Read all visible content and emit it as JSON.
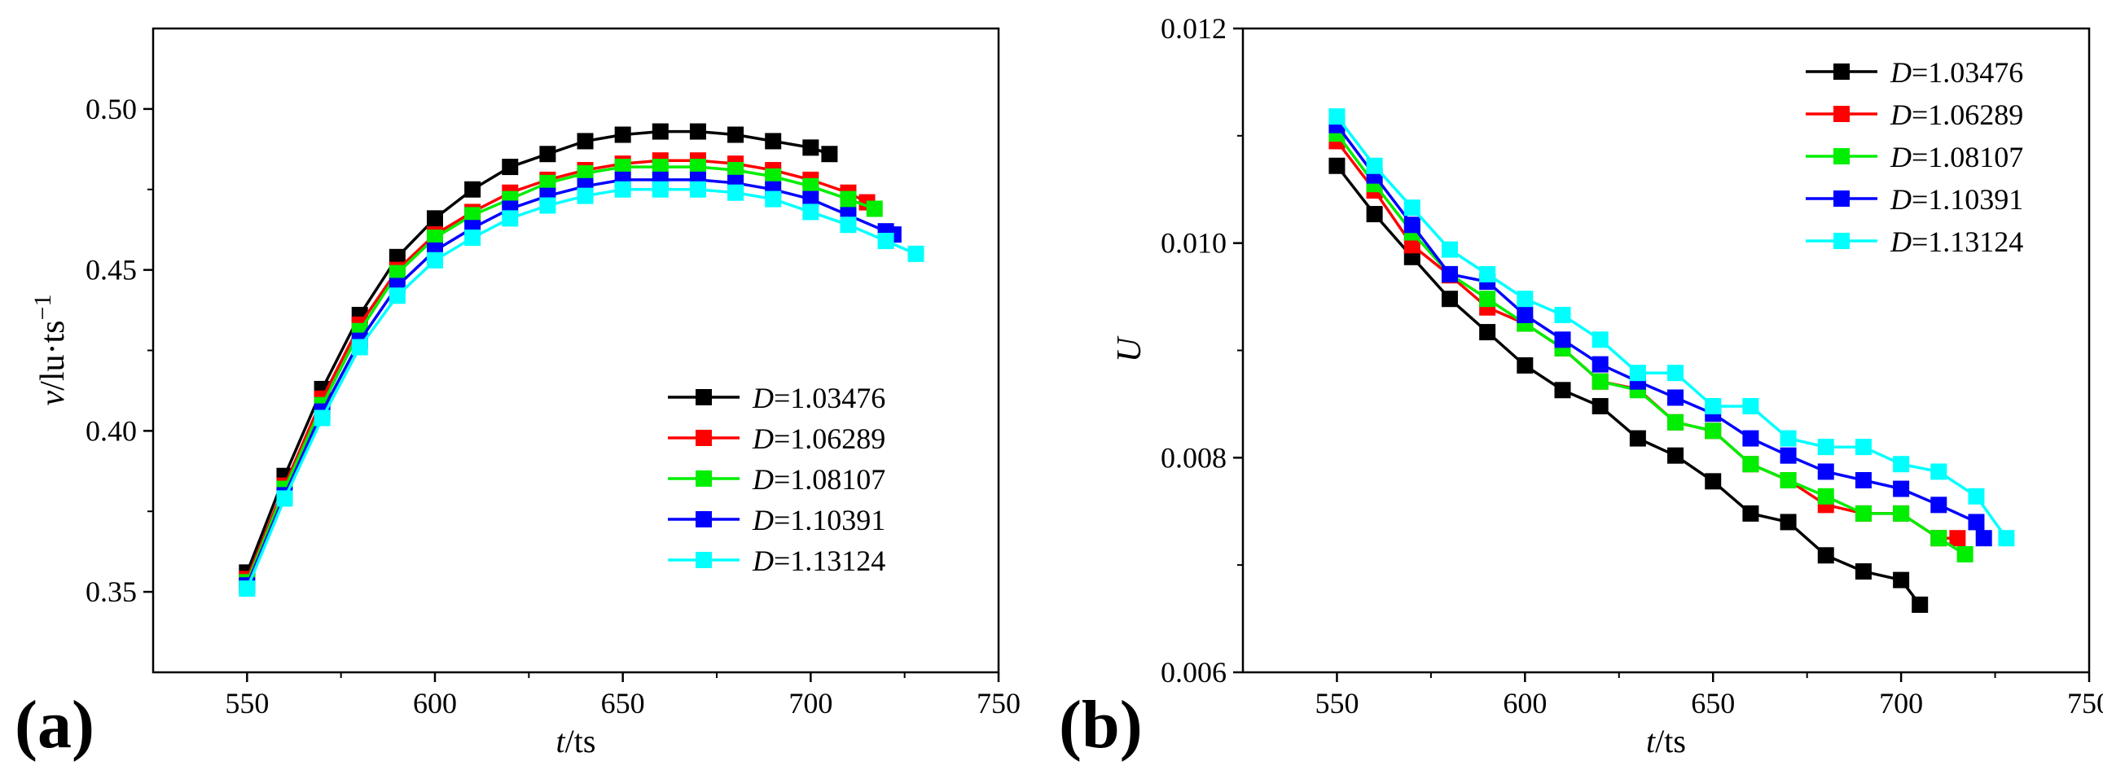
{
  "panel_labels": [
    "(a)",
    "(b)"
  ],
  "chart_data": [
    {
      "type": "line",
      "panel": "(a)",
      "xlabel_italic": "t",
      "xlabel_rest": "/ts",
      "ylabel_italic": "v",
      "ylabel_rest": "/lu·ts",
      "ylabel_sup": "−1",
      "xlim": [
        525,
        750
      ],
      "ylim": [
        0.325,
        0.525
      ],
      "xticks": [
        550,
        600,
        650,
        700,
        750
      ],
      "yticks": [
        0.35,
        0.4,
        0.45,
        0.5
      ],
      "xtick_labels": [
        "550",
        "600",
        "650",
        "700",
        "750"
      ],
      "ytick_labels": [
        "0.35",
        "0.40",
        "0.45",
        "0.50"
      ],
      "legend_position": "lower-right",
      "series": [
        {
          "name": "=1.03476",
          "symbol": "D",
          "color": "#000000",
          "x": [
            550,
            560,
            570,
            580,
            590,
            600,
            610,
            620,
            630,
            640,
            650,
            660,
            670,
            680,
            690,
            700,
            705
          ],
          "y": [
            0.356,
            0.386,
            0.413,
            0.436,
            0.454,
            0.466,
            0.475,
            0.482,
            0.486,
            0.49,
            0.492,
            0.493,
            0.493,
            0.492,
            0.49,
            0.488,
            0.486
          ]
        },
        {
          "name": "=1.06289",
          "symbol": "D",
          "color": "#ff0000",
          "x": [
            550,
            560,
            570,
            580,
            590,
            600,
            610,
            620,
            630,
            640,
            650,
            660,
            670,
            680,
            690,
            700,
            710,
            715
          ],
          "y": [
            0.354,
            0.383,
            0.41,
            0.433,
            0.45,
            0.461,
            0.468,
            0.474,
            0.478,
            0.481,
            0.483,
            0.484,
            0.484,
            0.483,
            0.481,
            0.478,
            0.474,
            0.471
          ]
        },
        {
          "name": "=1.08107",
          "symbol": "D",
          "color": "#00ee00",
          "x": [
            550,
            560,
            570,
            580,
            590,
            600,
            610,
            620,
            630,
            640,
            650,
            660,
            670,
            680,
            690,
            700,
            710,
            717
          ],
          "y": [
            0.353,
            0.382,
            0.408,
            0.431,
            0.449,
            0.46,
            0.467,
            0.472,
            0.477,
            0.48,
            0.482,
            0.482,
            0.482,
            0.481,
            0.479,
            0.476,
            0.472,
            0.469
          ]
        },
        {
          "name": "=1.10391",
          "symbol": "D",
          "color": "#0000ff",
          "x": [
            550,
            560,
            570,
            580,
            590,
            600,
            610,
            620,
            630,
            640,
            650,
            660,
            670,
            680,
            690,
            700,
            710,
            720,
            722
          ],
          "y": [
            0.352,
            0.38,
            0.406,
            0.428,
            0.445,
            0.456,
            0.463,
            0.469,
            0.473,
            0.476,
            0.478,
            0.478,
            0.478,
            0.477,
            0.475,
            0.472,
            0.467,
            0.462,
            0.461
          ]
        },
        {
          "name": "=1.13124",
          "symbol": "D",
          "color": "#00ffff",
          "x": [
            550,
            560,
            570,
            580,
            590,
            600,
            610,
            620,
            630,
            640,
            650,
            660,
            670,
            680,
            690,
            700,
            710,
            720,
            728
          ],
          "y": [
            0.351,
            0.379,
            0.404,
            0.426,
            0.442,
            0.453,
            0.46,
            0.466,
            0.47,
            0.473,
            0.475,
            0.475,
            0.475,
            0.474,
            0.472,
            0.468,
            0.464,
            0.459,
            0.455
          ]
        }
      ]
    },
    {
      "type": "line",
      "panel": "(b)",
      "xlabel_italic": "t",
      "xlabel_rest": "/ts",
      "ylabel_italic": "U",
      "ylabel_rest": "",
      "ylabel_sup": "",
      "xlim": [
        525,
        750
      ],
      "ylim": [
        0.006,
        0.012
      ],
      "xticks": [
        550,
        600,
        650,
        700,
        750
      ],
      "yticks": [
        0.006,
        0.008,
        0.01,
        0.012
      ],
      "xtick_labels": [
        "550",
        "600",
        "650",
        "700",
        "750"
      ],
      "ytick_labels": [
        "0.006",
        "0.008",
        "0.010",
        "0.012"
      ],
      "legend_position": "top-right",
      "series": [
        {
          "name": "=1.03476",
          "symbol": "D",
          "color": "#000000",
          "x": [
            550,
            560,
            570,
            580,
            590,
            600,
            610,
            620,
            630,
            640,
            650,
            660,
            670,
            680,
            690,
            700,
            705
          ],
          "y": [
            0.01072,
            0.01027,
            0.00987,
            0.00948,
            0.00917,
            0.00886,
            0.00863,
            0.00848,
            0.00818,
            0.00802,
            0.00778,
            0.00748,
            0.0074,
            0.00709,
            0.00694,
            0.00686,
            0.00663
          ]
        },
        {
          "name": "=1.06289",
          "symbol": "D",
          "color": "#ff0000",
          "x": [
            550,
            560,
            570,
            580,
            590,
            600,
            610,
            620,
            630,
            640,
            650,
            660,
            670,
            680,
            690,
            700,
            710,
            715
          ],
          "y": [
            0.01095,
            0.01049,
            0.00998,
            0.0097,
            0.0094,
            0.00925,
            0.00902,
            0.00871,
            0.00864,
            0.00833,
            0.00825,
            0.00794,
            0.00779,
            0.00756,
            0.00748,
            0.00748,
            0.00725,
            0.00725
          ]
        },
        {
          "name": "=1.08107",
          "symbol": "D",
          "color": "#00ee00",
          "x": [
            550,
            560,
            570,
            580,
            590,
            600,
            610,
            620,
            630,
            640,
            650,
            660,
            670,
            680,
            690,
            700,
            710,
            717
          ],
          "y": [
            0.01102,
            0.01055,
            0.0101,
            0.00971,
            0.00948,
            0.00925,
            0.00902,
            0.00871,
            0.00863,
            0.00833,
            0.00825,
            0.00794,
            0.00779,
            0.00764,
            0.00748,
            0.00748,
            0.00725,
            0.0071
          ]
        },
        {
          "name": "=1.10391",
          "symbol": "D",
          "color": "#0000ff",
          "x": [
            550,
            560,
            570,
            580,
            590,
            600,
            610,
            620,
            630,
            640,
            650,
            660,
            670,
            680,
            690,
            700,
            710,
            720,
            722
          ],
          "y": [
            0.0111,
            0.01063,
            0.01017,
            0.00971,
            0.00964,
            0.00933,
            0.0091,
            0.00887,
            0.00871,
            0.00856,
            0.00841,
            0.00818,
            0.00802,
            0.00787,
            0.00779,
            0.00771,
            0.00756,
            0.0074,
            0.00725
          ]
        },
        {
          "name": "=1.13124",
          "symbol": "D",
          "color": "#00ffff",
          "x": [
            550,
            560,
            570,
            580,
            590,
            600,
            610,
            620,
            630,
            640,
            650,
            660,
            670,
            680,
            690,
            700,
            710,
            720,
            728
          ],
          "y": [
            0.01118,
            0.01072,
            0.01033,
            0.00994,
            0.00971,
            0.00948,
            0.00933,
            0.0091,
            0.00879,
            0.00879,
            0.00848,
            0.00848,
            0.00818,
            0.0081,
            0.0081,
            0.00794,
            0.00787,
            0.00764,
            0.00725
          ]
        }
      ]
    }
  ]
}
